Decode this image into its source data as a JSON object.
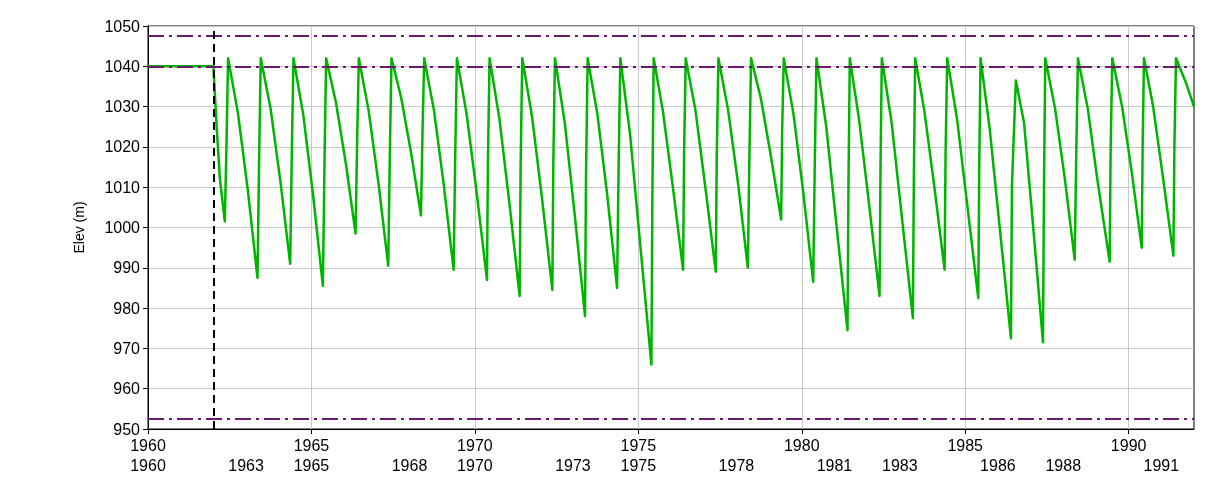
{
  "chart_data": {
    "type": "line",
    "ylabel": "Elev (m)",
    "xlim": [
      1960,
      1992
    ],
    "xticks": [
      1960,
      1965,
      1970,
      1975,
      1980,
      1985,
      1990
    ],
    "x2lim": [
      1960,
      1992
    ],
    "x2ticks": [
      1960,
      1963,
      1965,
      1968,
      1970,
      1973,
      1975,
      1978,
      1981,
      1983,
      1986,
      1988,
      1991
    ],
    "ylim": [
      950,
      1050
    ],
    "yticks": [
      950,
      960,
      970,
      980,
      990,
      1000,
      1010,
      1020,
      1030,
      1040,
      1050
    ],
    "grid": true,
    "marker": "none",
    "line_style": "solid",
    "ref_lines": [
      {
        "axis": "y",
        "value": 1047.5,
        "color": "#6a1a6a",
        "line_style": "dashdot"
      },
      {
        "axis": "y",
        "value": 1040,
        "color": "#6a1a6a",
        "line_style": "dashdot"
      },
      {
        "axis": "y",
        "value": 952.5,
        "color": "#6a1a6a",
        "line_style": "dashdot"
      },
      {
        "axis": "x",
        "value": 1962,
        "color": "#000000",
        "line_style": "dashed"
      }
    ],
    "series": [
      {
        "color": "#00b400",
        "x": [
          1960,
          1962,
          1962.1,
          1962.2,
          1962.35,
          1962.4,
          1962.45,
          1962.75,
          1963.05,
          1963.35,
          1963.4,
          1963.45,
          1963.75,
          1964.05,
          1964.35,
          1964.4,
          1964.45,
          1964.75,
          1965.05,
          1965.35,
          1965.4,
          1965.45,
          1965.75,
          1966.05,
          1966.35,
          1966.4,
          1966.45,
          1966.75,
          1967.05,
          1967.35,
          1967.4,
          1967.45,
          1967.75,
          1968.05,
          1968.35,
          1968.4,
          1968.45,
          1968.75,
          1969.05,
          1969.35,
          1969.4,
          1969.45,
          1969.75,
          1970.05,
          1970.37,
          1970.4,
          1970.45,
          1970.75,
          1971.05,
          1971.37,
          1971.4,
          1971.45,
          1971.75,
          1972.05,
          1972.37,
          1972.4,
          1972.45,
          1972.75,
          1973.05,
          1973.37,
          1973.4,
          1973.45,
          1973.75,
          1974.05,
          1974.35,
          1974.4,
          1974.45,
          1974.75,
          1975.05,
          1975.4,
          1975.43,
          1975.47,
          1975.75,
          1976.05,
          1976.37,
          1976.4,
          1976.45,
          1976.75,
          1977.05,
          1977.37,
          1977.4,
          1977.45,
          1977.75,
          1978.05,
          1978.35,
          1978.4,
          1978.45,
          1978.75,
          1979.05,
          1979.37,
          1979.4,
          1979.45,
          1979.75,
          1980.05,
          1980.35,
          1980.4,
          1980.45,
          1980.75,
          1981.05,
          1981.4,
          1981.43,
          1981.47,
          1981.75,
          1982.05,
          1982.38,
          1982.41,
          1982.45,
          1982.75,
          1983.05,
          1983.4,
          1983.43,
          1983.47,
          1983.75,
          1984.05,
          1984.37,
          1984.4,
          1984.45,
          1984.75,
          1985.05,
          1985.4,
          1985.43,
          1985.47,
          1985.75,
          1986.05,
          1986.4,
          1986.43,
          1986.55,
          1986.8,
          1987.05,
          1987.38,
          1987.41,
          1987.45,
          1987.75,
          1988.05,
          1988.35,
          1988.4,
          1988.45,
          1988.75,
          1989.05,
          1989.42,
          1989.45,
          1989.5,
          1989.8,
          1990.1,
          1990.4,
          1990.43,
          1990.47,
          1990.75,
          1991.05,
          1991.37,
          1991.4,
          1991.45,
          1991.75,
          1992
        ],
        "values": [
          1040,
          1040,
          1025,
          1012,
          1001.5,
          1020,
          1042,
          1028.5,
          1009.5,
          987.5,
          1017.5,
          1042,
          1029.5,
          1011.5,
          991,
          1019,
          1042,
          1028,
          1008,
          985.5,
          1016.5,
          1042,
          1031,
          1016,
          998.5,
          1022.5,
          1042,
          1029,
          1011,
          990.5,
          1019,
          1042,
          1032,
          1018.5,
          1003,
          1024.5,
          1042,
          1029,
          1010.5,
          989.5,
          1018.5,
          1042,
          1028,
          1009,
          987,
          1017,
          1042,
          1027,
          1006.5,
          983,
          1015.5,
          1042,
          1027.5,
          1007.5,
          984.5,
          1016,
          1042,
          1026,
          1003.5,
          978,
          1013,
          1042,
          1028,
          1008,
          985,
          1016.5,
          1042,
          1023,
          996.5,
          966,
          1008,
          1042,
          1029,
          1010.5,
          989.5,
          1018.5,
          1042,
          1029,
          1010,
          989,
          1018,
          1042,
          1029,
          1011,
          990,
          1018.5,
          1042,
          1032,
          1018,
          1002,
          1024,
          1042,
          1028,
          1008.5,
          986.5,
          1017,
          1042,
          1025,
          1001.5,
          974.5,
          1011.5,
          1042,
          1027,
          1006.5,
          983,
          1015.5,
          1042,
          1026,
          1003.5,
          977.5,
          1013,
          1042,
          1029,
          1010.5,
          989.5,
          1018.5,
          1042,
          1027,
          1006.5,
          982.5,
          1015,
          1042,
          1024.5,
          1000.5,
          972.5,
          1010.5,
          1036.5,
          1026,
          1003,
          971.5,
          1010,
          1042,
          1029.5,
          1012,
          992,
          1019.5,
          1042,
          1029.5,
          1011.5,
          991.5,
          1019.5,
          1042,
          1030,
          1013.5,
          995,
          1021,
          1042,
          1030,
          1012.5,
          993,
          1020,
          1042,
          1036,
          1030
        ]
      }
    ]
  }
}
